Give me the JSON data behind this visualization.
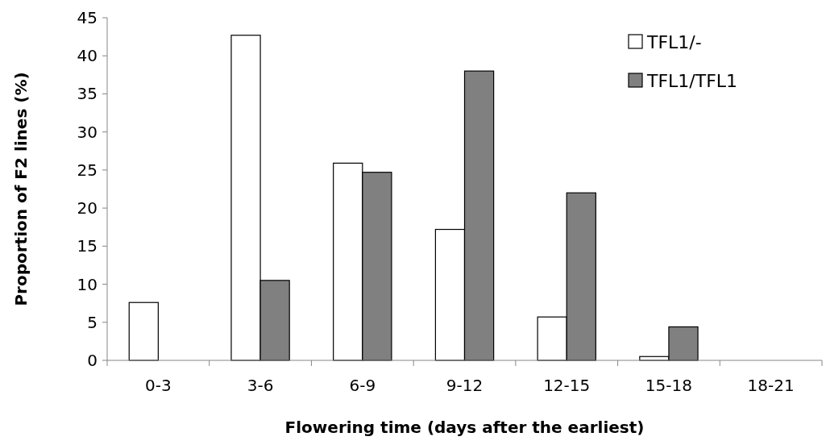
{
  "chart_data": {
    "type": "bar",
    "xlabel": "Flowering time (days after the earliest)",
    "ylabel": "Proportion of F2 lines (%)",
    "categories": [
      "0-3",
      "3-6",
      "6-9",
      "9-12",
      "12-15",
      "15-18",
      "18-21"
    ],
    "series": [
      {
        "name": "TFL1/-",
        "color": "#ffffff",
        "values": [
          7.6,
          42.7,
          25.9,
          17.2,
          5.7,
          0.5,
          0
        ]
      },
      {
        "name": "TFL1/TFL1",
        "color": "#808080",
        "values": [
          0,
          10.5,
          24.7,
          38.0,
          22.0,
          4.4,
          0
        ]
      }
    ],
    "ylim": [
      0,
      45
    ],
    "yticks": [
      0,
      5,
      10,
      15,
      20,
      25,
      30,
      35,
      40,
      45
    ],
    "grid": false,
    "legend": "top right"
  }
}
